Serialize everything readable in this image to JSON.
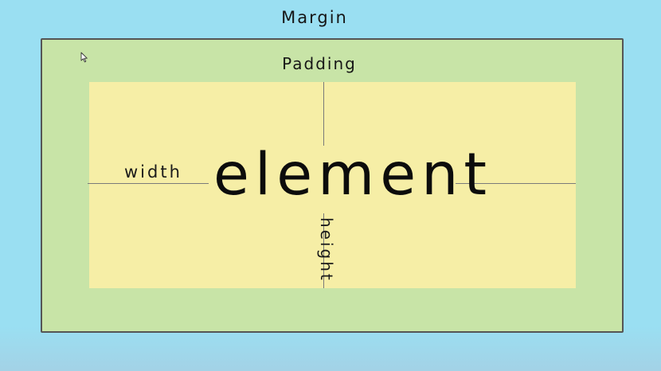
{
  "diagram": {
    "margin_label": "Margin",
    "padding_label": "Padding",
    "element_label": "element",
    "width_label": "width",
    "height_label": "height"
  },
  "colors": {
    "margin": "#9adff2",
    "padding": "#c8e4a7",
    "content": "#f6eea6",
    "border": "#555555",
    "guide_line": "#7a7a7a"
  },
  "icons": {
    "cursor": "mouse-pointer-icon"
  }
}
